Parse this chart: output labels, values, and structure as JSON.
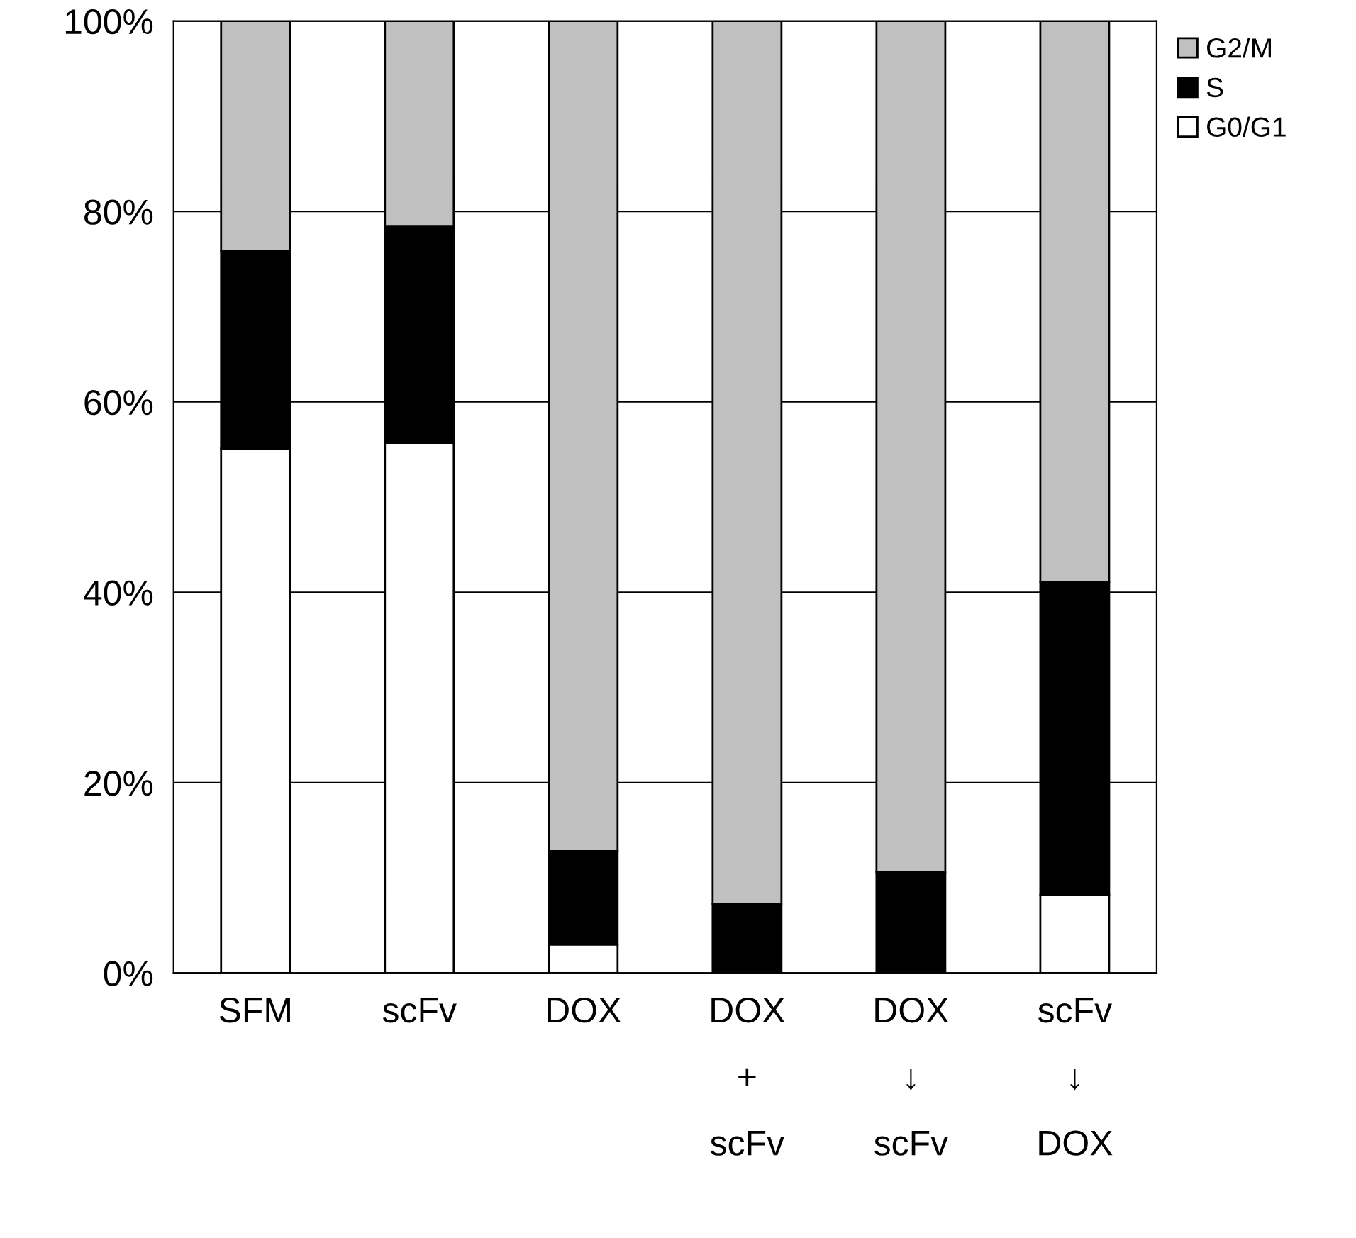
{
  "chart_data": {
    "type": "bar",
    "stacked": true,
    "categories": [
      "SFM",
      "scFv",
      "DOX",
      "DOX\n+\nscFv",
      "DOX\n↓\nscFv",
      "scFv\n↓\nDOX"
    ],
    "series": [
      {
        "name": "G0/G1",
        "color": "#ffffff",
        "values": [
          55.1,
          55.7,
          3.0,
          null,
          null,
          8.2
        ]
      },
      {
        "name": "S",
        "color": "#000000",
        "values": [
          20.8,
          22.7,
          9.8,
          7.3,
          10.6,
          32.9
        ]
      },
      {
        "name": "G2/M",
        "color": "#c0c0c0",
        "values": [
          24.1,
          21.6,
          87.2,
          92.7,
          89.4,
          58.9
        ]
      }
    ],
    "ylim": [
      0,
      100
    ],
    "yticks": [
      {
        "value": 0,
        "label": "0%"
      },
      {
        "value": 20,
        "label": "20%"
      },
      {
        "value": 40,
        "label": "40%"
      },
      {
        "value": 60,
        "label": "60%"
      },
      {
        "value": 80,
        "label": "80%"
      },
      {
        "value": 100,
        "label": "100%"
      }
    ],
    "grid": "y",
    "legend": "top right"
  }
}
